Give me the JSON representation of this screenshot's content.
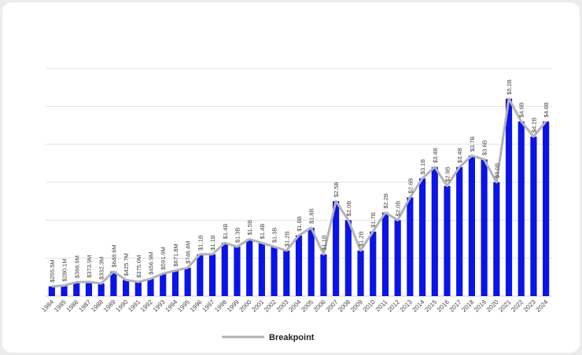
{
  "chart_data": {
    "type": "bar",
    "title": "",
    "xlabel": "",
    "ylabel": "",
    "ylim": [
      0,
      6
    ],
    "grid": true,
    "legend_position": "bottom",
    "bar_color": "#0a14e6",
    "line_color": "#b3b3b3",
    "categories": [
      "1984",
      "1985",
      "1986",
      "1987",
      "1988",
      "1989",
      "1990",
      "1991",
      "1992",
      "1993",
      "1994",
      "1995",
      "1996",
      "1997",
      "1998",
      "1999",
      "2000",
      "2001",
      "2002",
      "2003",
      "2004",
      "2005",
      "2006",
      "2007",
      "2008",
      "2009",
      "2010",
      "2011",
      "2012",
      "2013",
      "2014",
      "2015",
      "2016",
      "2017",
      "2018",
      "2019",
      "2020",
      "2021",
      "2022",
      "2023",
      "2024"
    ],
    "values": [
      0.2555,
      0.2801,
      0.3669,
      0.3739,
      0.3323,
      0.6486,
      0.4257,
      0.375,
      0.4569,
      0.5919,
      0.6718,
      0.7464,
      1.1,
      1.1,
      1.4,
      1.3,
      1.5,
      1.4,
      1.3,
      1.2,
      1.6,
      1.8,
      1.1,
      2.5,
      2.0,
      1.2,
      1.7,
      2.2,
      2.0,
      2.6,
      3.1,
      3.4,
      2.9,
      3.4,
      3.7,
      3.6,
      3.0,
      5.2,
      4.6,
      4.2,
      4.6
    ],
    "data_labels": [
      "$255.5M",
      "$280.1M",
      "$366.9M",
      "$373.9M",
      "$332.3M",
      "$648.6M",
      "$425.7M",
      "$375.0M",
      "$456.9M",
      "$591.9M",
      "$671.8M",
      "$746.4M",
      "$1.1B",
      "$1.1B",
      "$1.4B",
      "$1.3B",
      "$1.5B",
      "$1.4B",
      "$1.3B",
      "$1.2B",
      "$1.6B",
      "$1.8B",
      "$1.1B",
      "$2.5B",
      "$2.0B",
      "$1.2B",
      "$1.7B",
      "$2.2B",
      "$2.0B",
      "$2.6B",
      "$3.1B",
      "$3.4B",
      "$2.9B",
      "$3.4B",
      "$3.7B",
      "$3.6B",
      "$3.0B",
      "$5.2B",
      "$4.6B",
      "$4.2B",
      "$4.6B"
    ],
    "series": [
      {
        "name": "Breakpoint",
        "type": "line"
      }
    ]
  },
  "legend": {
    "label": "Breakpoint"
  }
}
